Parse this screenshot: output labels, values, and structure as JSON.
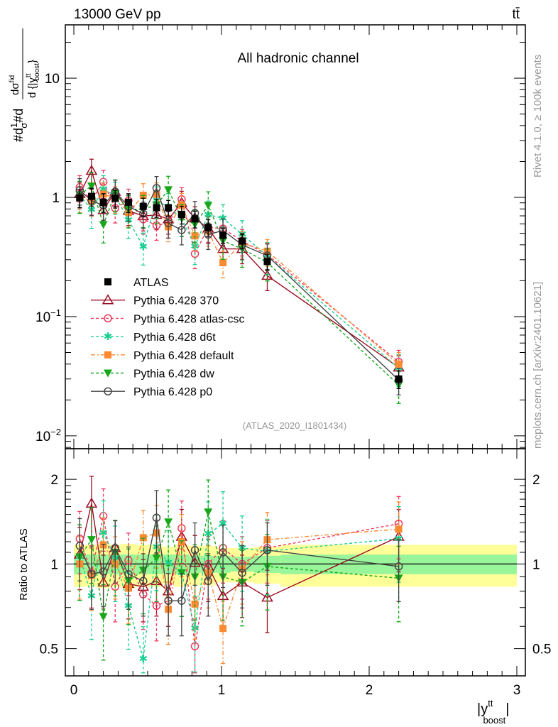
{
  "chart_data": {
    "type": "line",
    "header_left": "13000 GeV pp",
    "header_right": "tt̄",
    "title": "All hadronic channel",
    "analysis_id": "(ATLAS_2020_I1801434)",
    "side_text_1": "Rivet 4.1.0, ≥ 100k events",
    "side_text_2": "mcplots.cern.ch [arXiv:2401.10621]",
    "ylabel": "#d1/σ#d dσ^fid / d{|y^tt_boost|}",
    "ylabel_parts": {
      "a": "#d",
      "b": "1",
      "c": "σ",
      "d": "#d",
      "num": "dσ",
      "num_sup": "fid",
      "den": "d {|y",
      "den_sup": "tt",
      "den_sub": "boost",
      "close": "}"
    },
    "ratio_ylabel": "Ratio to ATLAS",
    "xlabel": {
      "base": "|y",
      "sup": "tt",
      "sub": "boost",
      "close": "|"
    },
    "xlim": [
      0,
      3
    ],
    "ylim": [
      0.0078,
      28
    ],
    "ratio_ylim": [
      0.4,
      2.57
    ],
    "yscale": "log",
    "x_ticks": [
      "0",
      "1",
      "2",
      "3"
    ],
    "y_ticks": [
      {
        "v": 10,
        "base": "10",
        "exp": ""
      },
      {
        "v": 1,
        "base": "1",
        "exp": ""
      },
      {
        "v": 0.1,
        "base": "10",
        "exp": "−1"
      },
      {
        "v": 0.01,
        "base": "10",
        "exp": "−2"
      }
    ],
    "ratio_ticks": [
      "0.5",
      "1",
      "2"
    ],
    "legend_position": "center-left",
    "bin_edges": [
      0,
      0.08,
      0.16,
      0.24,
      0.32,
      0.42,
      0.52,
      0.6,
      0.68,
      0.78,
      0.86,
      0.96,
      1.06,
      1.22,
      1.4,
      3
    ],
    "x": [
      0.04,
      0.12,
      0.2,
      0.28,
      0.37,
      0.47,
      0.56,
      0.64,
      0.73,
      0.82,
      0.91,
      1.01,
      1.14,
      1.31,
      2.2
    ],
    "data": {
      "name": "ATLAS",
      "color": "#000000",
      "values": [
        0.99,
        1.02,
        0.91,
        0.98,
        0.91,
        0.84,
        0.82,
        0.82,
        0.72,
        0.66,
        0.56,
        0.48,
        0.43,
        0.29,
        0.03
      ],
      "band_yellow": [
        0.17,
        0.17,
        0.18,
        0.17,
        0.18,
        0.17,
        0.17,
        0.15,
        0.17,
        0.16,
        0.16,
        0.14,
        0.14,
        0.15,
        0.17
      ],
      "band_green": [
        0.08,
        0.08,
        0.08,
        0.08,
        0.08,
        0.08,
        0.08,
        0.08,
        0.08,
        0.07,
        0.07,
        0.07,
        0.06,
        0.07,
        0.08
      ]
    },
    "series": [
      {
        "name": "Pythia 6.428 370",
        "color": "#9b0d23",
        "dash": "",
        "marker": "triangle-up-open",
        "rel_err": 0.25,
        "ratio": [
          1.08,
          1.64,
          0.86,
          1.14,
          0.85,
          0.83,
          0.87,
          0.8,
          1.25,
          1.01,
          0.98,
          0.77,
          0.86,
          0.76,
          1.25
        ]
      },
      {
        "name": "Pythia 6.428 atlas-csc",
        "color": "#f0385e",
        "dash": "4,3",
        "marker": "circle-open",
        "rel_err": 0.25,
        "ratio": [
          1.23,
          0.93,
          1.48,
          0.83,
          1.03,
          0.78,
          0.71,
          0.74,
          1.34,
          0.51,
          1.0,
          1.14,
          1.0,
          1.14,
          1.39
        ]
      },
      {
        "name": "Pythia 6.428 d6t",
        "color": "#1ccf90",
        "dash": "4,3",
        "marker": "star",
        "rel_err": 0.3,
        "ratio": [
          1.06,
          0.77,
          1.29,
          1.05,
          0.71,
          0.46,
          1.15,
          1.01,
          0.93,
          0.59,
          1.28,
          1.39,
          1.14,
          1.11,
          1.23
        ]
      },
      {
        "name": "Pythia 6.428 default",
        "color": "#fb8a30",
        "dash": "6,3,2,3",
        "marker": "square",
        "rel_err": 0.25,
        "ratio": [
          1.0,
          0.91,
          1.17,
          1.0,
          0.82,
          1.24,
          1.29,
          0.69,
          1.2,
          0.72,
          0.93,
          0.59,
          0.96,
          1.22,
          1.33
        ]
      },
      {
        "name": "Pythia 6.428 dw",
        "color": "#16a81a",
        "dash": "4,3",
        "marker": "triangle-down",
        "rel_err": 0.3,
        "ratio": [
          1.06,
          1.22,
          0.65,
          1.1,
          0.87,
          0.95,
          1.05,
          1.41,
          0.93,
          0.9,
          1.53,
          0.9,
          0.86,
          0.98,
          0.89
        ]
      },
      {
        "name": "Pythia 6.428 p0",
        "color": "#454545",
        "dash": "",
        "marker": "circle-open",
        "rel_err": 0.25,
        "ratio": [
          1.16,
          0.92,
          0.94,
          1.14,
          0.92,
          0.87,
          1.46,
          0.74,
          0.74,
          1.12,
          0.87,
          1.1,
          0.93,
          1.12,
          0.98
        ]
      }
    ]
  }
}
